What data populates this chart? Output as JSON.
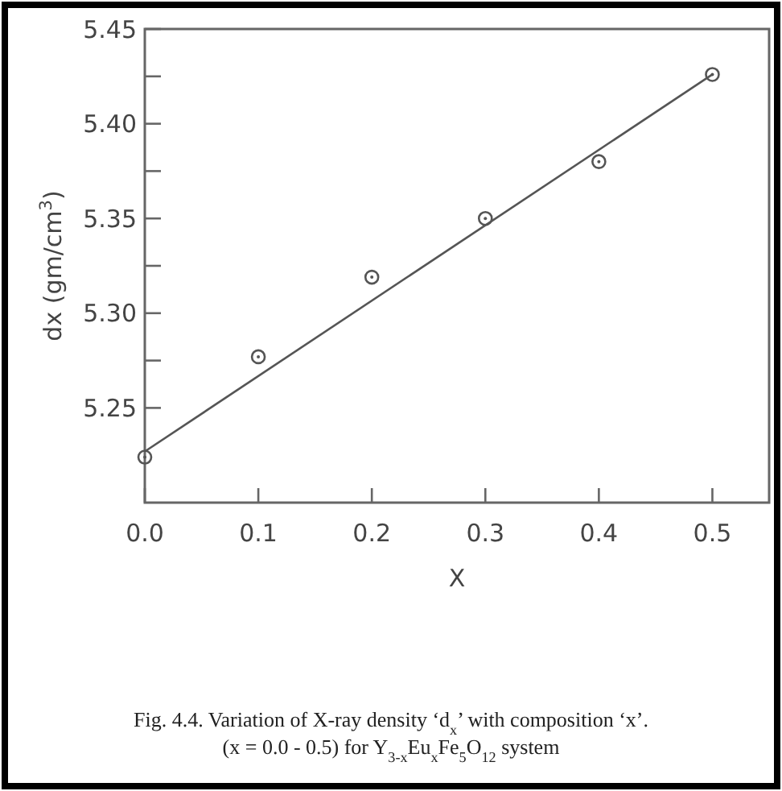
{
  "chart_data": {
    "type": "scatter",
    "xlabel": "X",
    "ylabel": "dx (gm/cm$^{3}$)",
    "xlim": [
      0,
      0.55
    ],
    "ylim": [
      5.2,
      5.45
    ],
    "xticks": [
      {
        "value": 0,
        "label": "0.0"
      },
      0.1,
      0.2,
      0.3,
      0.4,
      0.5
    ],
    "yticks": [
      {
        "value": 5.25,
        "label": "5.25"
      },
      {
        "value": 5.275,
        "label": null
      },
      {
        "value": 5.3,
        "label": "5.30"
      },
      {
        "value": 5.325,
        "label": null
      },
      {
        "value": 5.35,
        "label": "5.35"
      },
      {
        "value": 5.375,
        "label": null
      },
      {
        "value": 5.4,
        "label": "5.40"
      },
      {
        "value": 5.425,
        "label": null
      },
      {
        "value": 5.45,
        "label": "5.45"
      }
    ],
    "marker": "circle",
    "grid": false,
    "series": [
      {
        "color": "#555555",
        "x": [
          0,
          0.1,
          0.2,
          0.3,
          0.4,
          0.5
        ],
        "values": [
          5.224,
          5.277,
          5.319,
          5.35,
          5.38,
          5.426
        ]
      },
      {
        "type": "line",
        "color": "#555555",
        "marker": "none",
        "x": [
          0,
          0.5
        ],
        "values": [
          5.227,
          5.426
        ]
      }
    ],
    "annotations": [
      "Fig. 4.4. Variation of X-ray density ‘d$_{x}$’ with composition ‘x’.",
      "(x = 0.0 - 0.5)  for Y$_{3-x}$Eu$_{x}$Fe$_{5}$O$_{12}$ system"
    ]
  }
}
